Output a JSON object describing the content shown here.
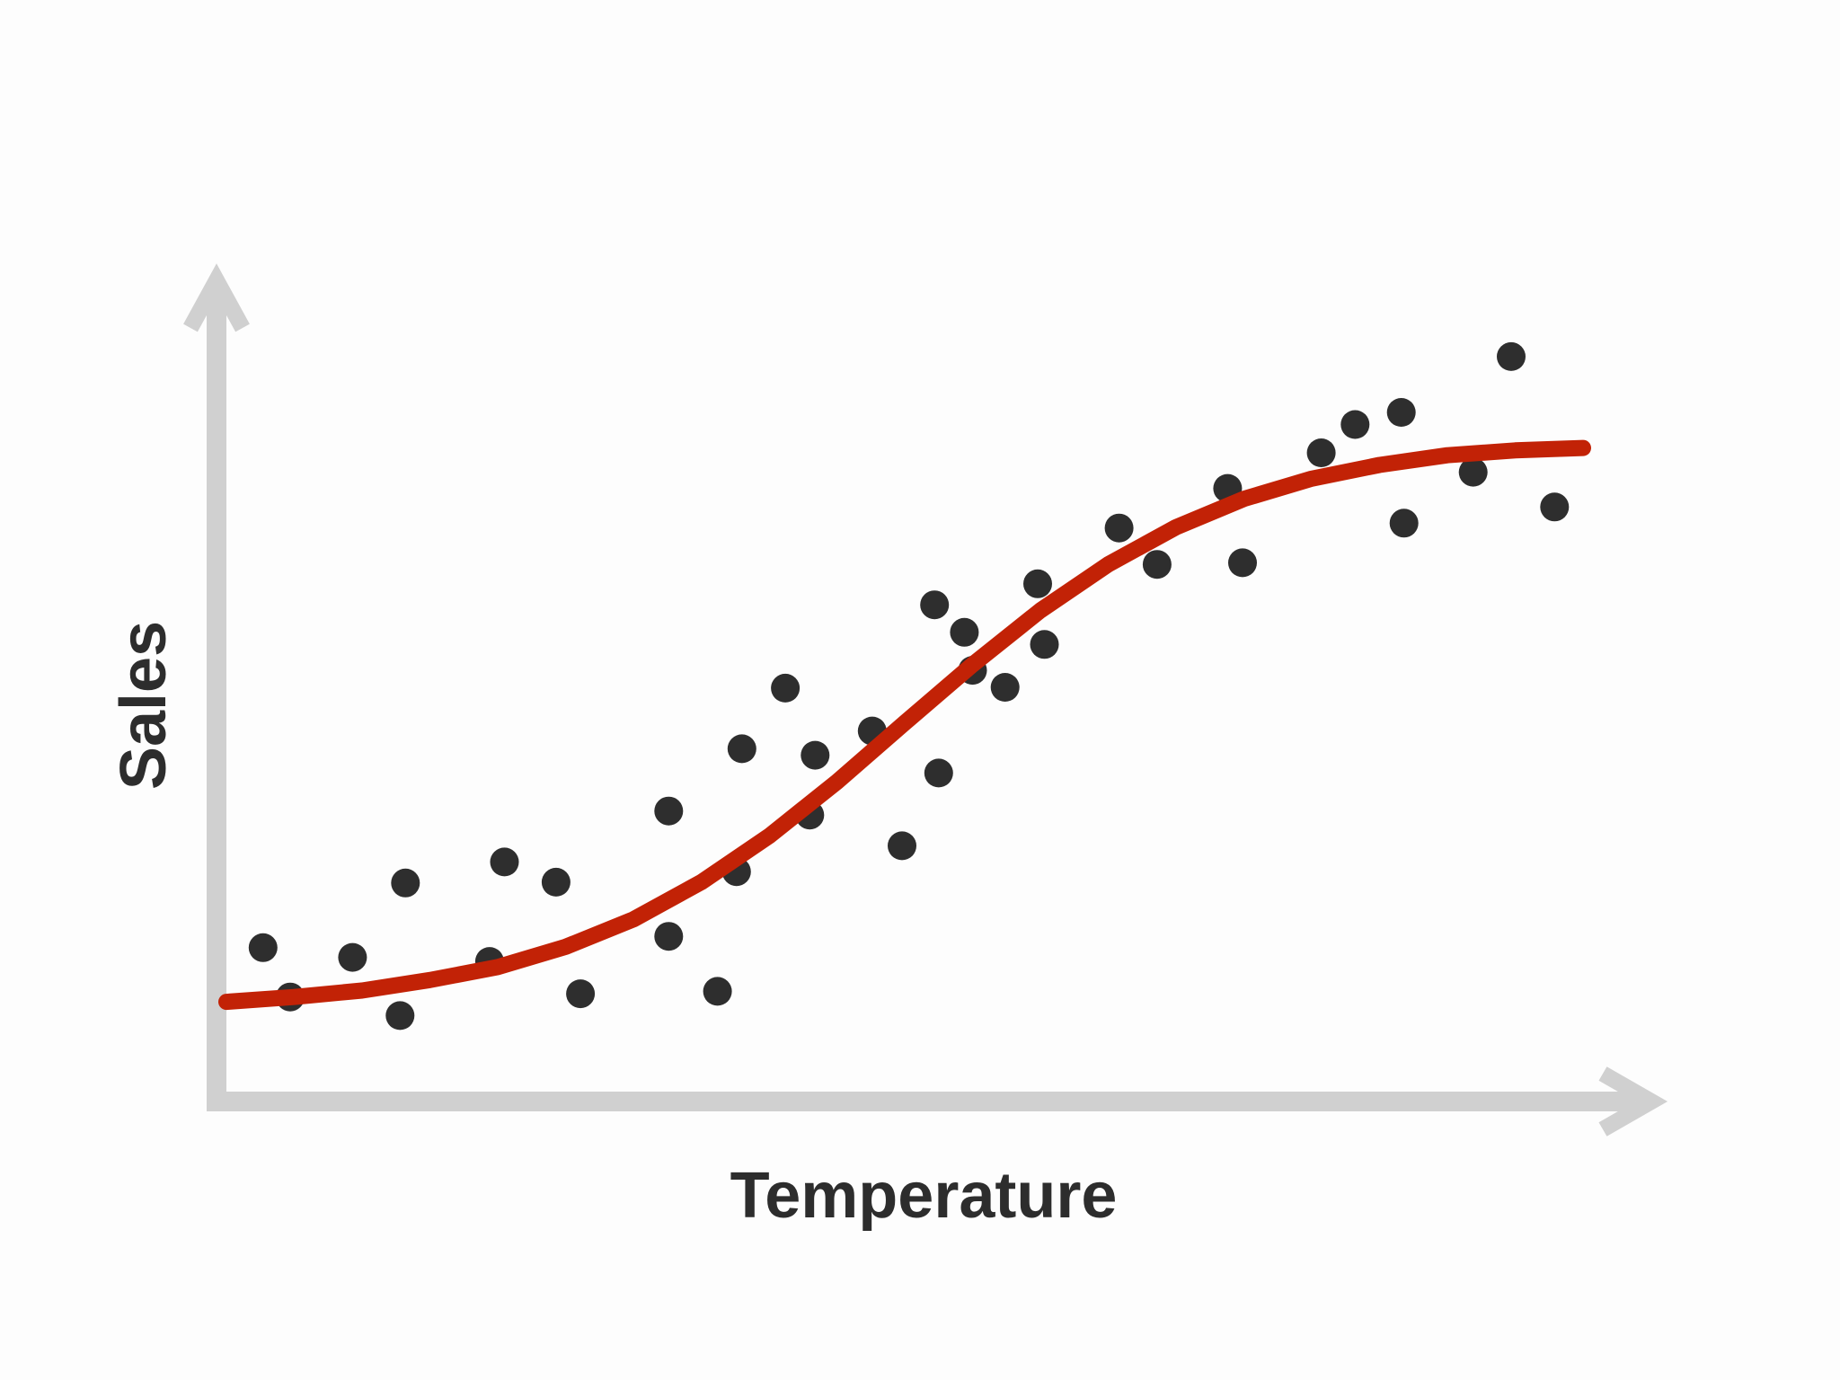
{
  "chart_data": {
    "type": "scatter",
    "title": "",
    "xlabel": "Temperature",
    "ylabel": "Sales",
    "xlim": [
      0,
      100
    ],
    "ylim": [
      0,
      100
    ],
    "grid": false,
    "tick_labels": false,
    "series": [
      {
        "type": "scatter",
        "x": [
          2.7,
          4.7,
          9.3,
          12.8,
          13.2,
          19.4,
          20.5,
          24.3,
          26.1,
          32.6,
          32.6,
          36.2,
          37.6,
          38.0,
          41.2,
          43.0,
          43.4,
          47.6,
          49.8,
          52.2,
          52.5,
          54.4,
          55.0,
          57.4,
          59.8,
          60.3,
          65.8,
          68.6,
          73.8,
          74.9,
          80.7,
          83.2,
          86.6,
          86.8,
          91.9,
          94.7,
          97.9
        ],
        "y": [
          17.8,
          11.7,
          16.6,
          9.4,
          25.8,
          16.1,
          28.4,
          25.9,
          12.1,
          34.7,
          19.2,
          12.4,
          27.2,
          42.4,
          49.9,
          34.2,
          41.6,
          44.6,
          30.4,
          60.2,
          39.4,
          56.8,
          52.1,
          50.0,
          62.8,
          55.3,
          69.7,
          65.2,
          74.6,
          65.4,
          79.0,
          82.5,
          84.0,
          70.3,
          76.6,
          90.9,
          72.3
        ]
      },
      {
        "type": "line",
        "fit": "sigmoid",
        "x": [
          0,
          5,
          10,
          15,
          20,
          25,
          30,
          35,
          40,
          45,
          50,
          55,
          60,
          65,
          70,
          75,
          80,
          85,
          90,
          95,
          100
        ],
        "y": [
          11.1,
          11.7,
          12.5,
          13.8,
          15.4,
          17.9,
          21.3,
          25.9,
          31.6,
          38.3,
          45.6,
          52.8,
          59.5,
          65.2,
          69.8,
          73.3,
          75.8,
          77.5,
          78.7,
          79.3,
          79.6
        ]
      }
    ],
    "colors": {
      "points": "#2e2e2e",
      "curve": "#c22206",
      "axes": "#d0d0d0",
      "label_text": "#2d2d2d",
      "background": "#fdfdfd"
    }
  }
}
